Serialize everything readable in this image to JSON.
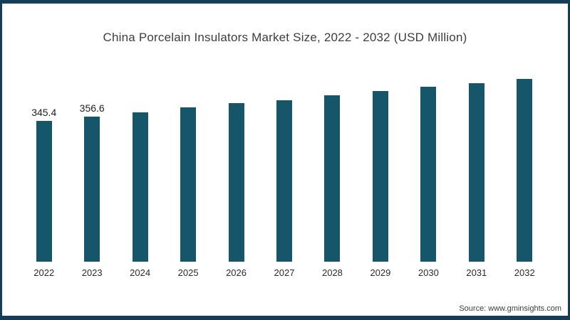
{
  "chart_data": {
    "type": "bar",
    "title": "China Porcelain Insulators Market Size,  2022 - 2032 (USD Million)",
    "categories": [
      "2022",
      "2023",
      "2024",
      "2025",
      "2026",
      "2027",
      "2028",
      "2029",
      "2030",
      "2031",
      "2032"
    ],
    "values": [
      345.4,
      356.6,
      367.2,
      378.6,
      389.0,
      396.5,
      407.6,
      418.9,
      428.5,
      437.3,
      448.2
    ],
    "data_labels": [
      "345.4",
      "356.6",
      "",
      "",
      "",
      "",
      "",
      "",
      "",
      "",
      ""
    ],
    "xlabel": "",
    "ylabel": "",
    "ylim": [
      0,
      470
    ],
    "grid": false,
    "legend": false,
    "bar_color": "#15566a"
  },
  "source": {
    "text": "Source: www.gminsights.com"
  },
  "colors": {
    "frame_border": "#133d58",
    "background": "#ffffff",
    "title_text": "#3d3d3d",
    "axis_text": "#2b2b2b"
  }
}
